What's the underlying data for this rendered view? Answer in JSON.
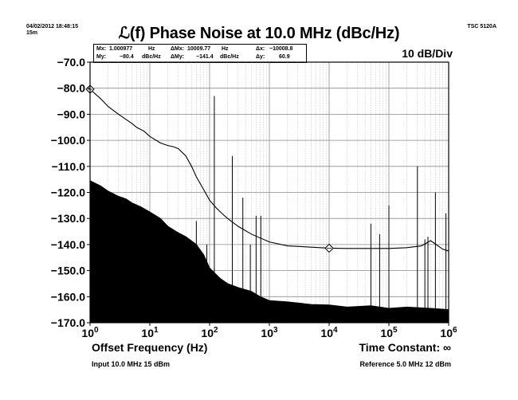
{
  "header": {
    "timestamp_line1": "04/02/2012 18:48:15",
    "timestamp_line2": "15m",
    "instrument": "TSC 5120A",
    "title": "ℒ(f) Phase Noise at 10.0 MHz (dBc/Hz)",
    "div_label": "10 dB/Div"
  },
  "marker_box": {
    "mx_label": "Mx:",
    "mx_value": "1.000977",
    "mx_unit": "Hz",
    "dmx_label": "ΔMx:",
    "dmx_value": "10009.77",
    "dmx_unit": "Hz",
    "dx_label": "Δx:",
    "dx_value": "−10008.8",
    "my_label": "My:",
    "my_value": "−80.4",
    "my_unit": "dBc/Hz",
    "dmy_label": "ΔMy:",
    "dmy_value": "−141.4",
    "dmy_unit": "dBc/Hz",
    "dy_label": "Δy:",
    "dy_value": "60.9"
  },
  "footer": {
    "xlabel": "Offset Frequency (Hz)",
    "time_constant": "Time Constant: ∞",
    "input_info": "Input 10.0 MHz 15 dBm",
    "reference_info": "Reference 5.0 MHz 12 dBm"
  },
  "colors": {
    "trace": "#000000",
    "floor_fill": "#000000",
    "major_grid": "#8c8c8c",
    "minor_grid": "#c4c4c4"
  },
  "chart_data": {
    "type": "line",
    "x_scale": "log",
    "xlim": [
      1,
      1000000
    ],
    "ylim": [
      -170,
      -70
    ],
    "grid": true,
    "ylabel": "",
    "yticks": [
      {
        "value": -70,
        "label": "−70.0"
      },
      {
        "value": -80,
        "label": "−80.0"
      },
      {
        "value": -90,
        "label": "−90.0"
      },
      {
        "value": -100,
        "label": "−100.0"
      },
      {
        "value": -110,
        "label": "−110.0"
      },
      {
        "value": -120,
        "label": "−120.0"
      },
      {
        "value": -130,
        "label": "−130.0"
      },
      {
        "value": -140,
        "label": "−140.0"
      },
      {
        "value": -150,
        "label": "−150.0"
      },
      {
        "value": -160,
        "label": "−160.0"
      },
      {
        "value": -170,
        "label": "−170.0"
      }
    ],
    "xticks": [
      {
        "value": 1,
        "base": "10",
        "exp": "0"
      },
      {
        "value": 10,
        "base": "10",
        "exp": "1"
      },
      {
        "value": 100,
        "base": "10",
        "exp": "2"
      },
      {
        "value": 1000,
        "base": "10",
        "exp": "3"
      },
      {
        "value": 10000,
        "base": "10",
        "exp": "4"
      },
      {
        "value": 100000,
        "base": "10",
        "exp": "5"
      },
      {
        "value": 1000000,
        "base": "10",
        "exp": "6"
      }
    ],
    "series": [
      {
        "kind": "line",
        "x": [
          1,
          1.5,
          2,
          3,
          4,
          5,
          6,
          8,
          10,
          15,
          20,
          25,
          30,
          40,
          50,
          60,
          80,
          100,
          130,
          160,
          200,
          300,
          500,
          1000,
          2000,
          5000,
          10000,
          20000,
          50000,
          100000,
          200000,
          350000,
          500000,
          600000,
          800000,
          1000000
        ],
        "y": [
          -80.4,
          -84,
          -87,
          -90,
          -92,
          -93.5,
          -95,
          -96.5,
          -98.5,
          -101,
          -102,
          -102.5,
          -103.2,
          -106,
          -110,
          -114,
          -119,
          -123,
          -126,
          -128,
          -130,
          -133,
          -136,
          -139,
          -140.5,
          -141,
          -141.4,
          -141.5,
          -141.5,
          -141.5,
          -141.2,
          -140.5,
          -138.5,
          -139.8,
          -141.8,
          -142.5
        ]
      },
      {
        "kind": "area",
        "x": [
          1,
          1.5,
          2,
          3,
          4,
          5,
          7,
          10,
          15,
          20,
          30,
          40,
          60,
          80,
          100,
          150,
          200,
          300,
          500,
          700,
          1000,
          2000,
          5000,
          10000,
          20000,
          50000,
          100000,
          200000,
          500000,
          1000000
        ],
        "y": [
          -115.5,
          -117.5,
          -119.5,
          -121.5,
          -122.5,
          -124,
          -125.5,
          -127.5,
          -130,
          -133,
          -135.5,
          -137,
          -140,
          -144,
          -149,
          -153,
          -155,
          -156.5,
          -158,
          -160,
          -161.5,
          -162,
          -163,
          -163.2,
          -164,
          -163.5,
          -164.5,
          -164,
          -164.5,
          -165
        ]
      },
      {
        "kind": "spurs",
        "spurs": [
          {
            "x": 60,
            "y": -131
          },
          {
            "x": 90,
            "y": -140
          },
          {
            "x": 120,
            "y": -83
          },
          {
            "x": 240,
            "y": -106
          },
          {
            "x": 360,
            "y": -122
          },
          {
            "x": 480,
            "y": -140
          },
          {
            "x": 600,
            "y": -129
          },
          {
            "x": 720,
            "y": -129
          },
          {
            "x": 50000,
            "y": -132
          },
          {
            "x": 70000,
            "y": -136
          },
          {
            "x": 100000,
            "y": -125
          },
          {
            "x": 300000,
            "y": -110
          },
          {
            "x": 400000,
            "y": -138
          },
          {
            "x": 450000,
            "y": -137
          },
          {
            "x": 600000,
            "y": -120
          },
          {
            "x": 900000,
            "y": -128
          }
        ]
      }
    ],
    "markers": [
      {
        "x": 1.000977,
        "y": -80.4,
        "shape": "diamond"
      },
      {
        "x": 10009.77,
        "y": -141.4,
        "shape": "diamond"
      }
    ]
  }
}
